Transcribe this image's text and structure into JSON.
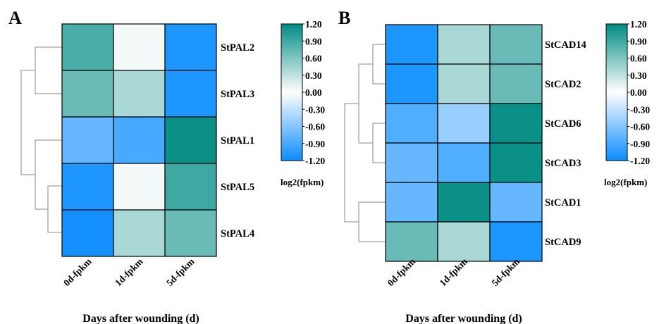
{
  "chart_data": [
    {
      "type": "heatmap",
      "panel": "A",
      "columns": [
        "0d-fpkm",
        "1d-fpkm",
        "5d-fpkm"
      ],
      "rows": [
        "StPAL2",
        "StPAL3",
        "StPAL1",
        "StPAL5",
        "StPAL4"
      ],
      "values": [
        [
          0.85,
          0.05,
          -1.1
        ],
        [
          0.7,
          0.4,
          -1.1
        ],
        [
          -0.75,
          -0.9,
          1.15
        ],
        [
          -1.1,
          0.05,
          0.9
        ],
        [
          -1.15,
          0.4,
          0.7
        ]
      ],
      "xlabel": "Days after wounding (d)",
      "colorbar": {
        "title": "log2(fpkm)",
        "ticks": [
          "1.20",
          "0.90",
          "0.60",
          "0.30",
          "0.00",
          "-0.30",
          "-0.60",
          "-0.90",
          "-1.20"
        ],
        "range": [
          -1.2,
          1.2
        ],
        "low_color": "#0a8cff",
        "mid_color": "#ffffff",
        "high_color": "#008b83"
      }
    },
    {
      "type": "heatmap",
      "panel": "B",
      "columns": [
        "0d-fpkm",
        "1d-fpkm",
        "5d-fpkm"
      ],
      "rows": [
        "StCAD14",
        "StCAD2",
        "StCAD6",
        "StCAD3",
        "StCAD1",
        "StCAD9"
      ],
      "values": [
        [
          -1.1,
          0.4,
          0.7
        ],
        [
          -1.1,
          0.4,
          0.7
        ],
        [
          -0.85,
          -0.5,
          1.15
        ],
        [
          -0.75,
          -0.85,
          1.15
        ],
        [
          -0.75,
          1.15,
          -0.75
        ],
        [
          0.7,
          0.4,
          -1.1
        ]
      ],
      "xlabel": "Days after wounding (d)",
      "colorbar": {
        "title": "log2(fpkm)",
        "ticks": [
          "1.20",
          "0.90",
          "0.60",
          "0.30",
          "0.00",
          "-0.30",
          "-0.60",
          "-0.90",
          "-1.20"
        ],
        "range": [
          -1.2,
          1.2
        ],
        "low_color": "#0a8cff",
        "mid_color": "#ffffff",
        "high_color": "#008b83"
      }
    }
  ]
}
